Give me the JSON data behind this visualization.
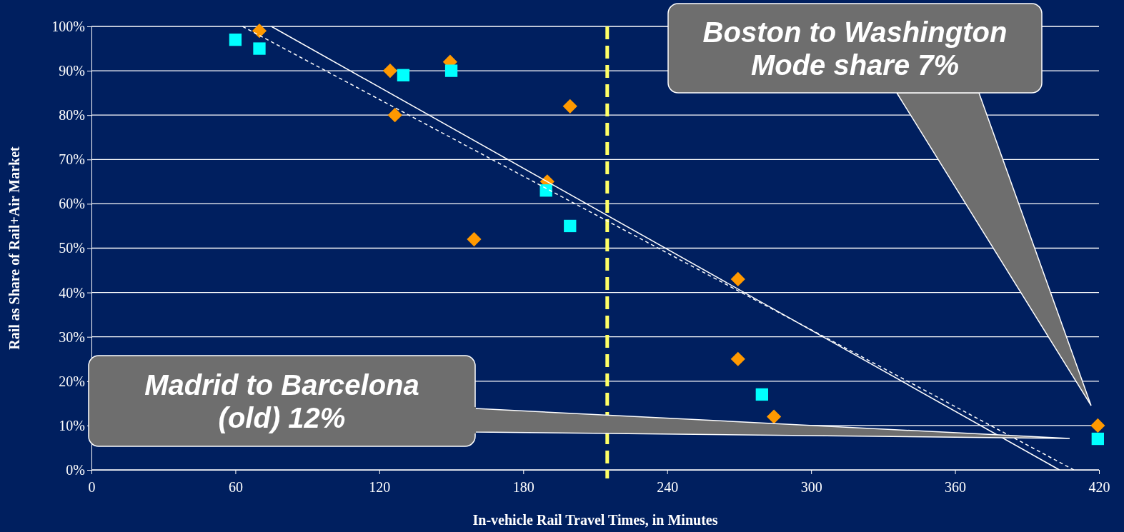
{
  "chart_data": {
    "type": "scatter",
    "xlabel": "In-vehicle Rail Travel Times, in Minutes",
    "ylabel": "Rail as Share of Rail+Air Market",
    "xlim": [
      0,
      420
    ],
    "xticks": [
      0,
      60,
      120,
      180,
      240,
      300,
      360,
      420
    ],
    "ylim": [
      0,
      100
    ],
    "yticks": [
      {
        "value": 0,
        "label": "0%"
      },
      {
        "value": 10,
        "label": "10%"
      },
      {
        "value": 20,
        "label": "20%"
      },
      {
        "value": 30,
        "label": "30%"
      },
      {
        "value": 40,
        "label": "40%"
      },
      {
        "value": 50,
        "label": "50%"
      },
      {
        "value": 60,
        "label": "60%"
      },
      {
        "value": 70,
        "label": "70%"
      },
      {
        "value": 80,
        "label": "80%"
      },
      {
        "value": 90,
        "label": "90%"
      },
      {
        "value": 100,
        "label": "100%"
      }
    ],
    "grid": "y",
    "series": [
      {
        "color": "#ff9900",
        "marker": "diamond",
        "x": [
          70,
          124.5,
          126.5,
          149.5,
          159.5,
          190,
          199.5,
          269.5,
          269.5,
          284.5,
          419.5
        ],
        "values": [
          99,
          90,
          80,
          92,
          52,
          65,
          82,
          43,
          25,
          12,
          10
        ]
      },
      {
        "color": "#00ffff",
        "marker": "square",
        "x": [
          60,
          70,
          130,
          150,
          189.5,
          199.5,
          279.5,
          419.5
        ],
        "values": [
          97,
          95,
          89,
          90,
          63,
          55,
          17,
          7
        ]
      },
      {
        "type": "line",
        "color": "#ffffff",
        "marker": "none",
        "line_style": "solid",
        "x": [
          75,
          403.5
        ],
        "values": [
          100,
          0
        ]
      },
      {
        "type": "line",
        "color": "#ffffff",
        "marker": "none",
        "line_style": "dashed",
        "x": [
          63,
          409.5
        ],
        "values": [
          100,
          0
        ]
      }
    ],
    "ref_lines": [
      {
        "axis": "x",
        "value": 215,
        "color": "#ffff66",
        "line_style": "dashed"
      }
    ],
    "annotations": [
      "Boston to Washington\nMode share 7%",
      "Madrid to Barcelona\n(old) 12%"
    ]
  }
}
